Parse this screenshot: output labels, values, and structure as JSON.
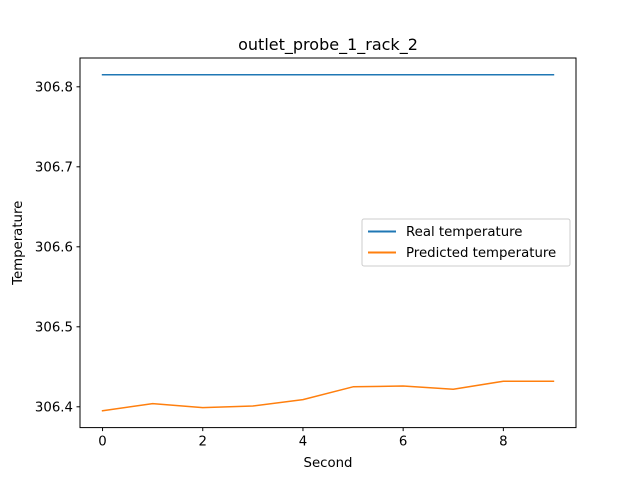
{
  "chart_data": {
    "type": "line",
    "title": "outlet_probe_1_rack_2",
    "xlabel": "Second",
    "ylabel": "Temperature",
    "xlim": [
      -0.45,
      9.45
    ],
    "ylim": [
      306.374,
      306.836
    ],
    "xticks": [
      0,
      2,
      4,
      6,
      8
    ],
    "yticks": [
      306.4,
      306.5,
      306.6,
      306.7,
      306.8
    ],
    "x": [
      0,
      1,
      2,
      3,
      4,
      5,
      6,
      7,
      8,
      9
    ],
    "series": [
      {
        "name": "Real temperature",
        "color": "#1f77b4",
        "values": [
          306.815,
          306.815,
          306.815,
          306.815,
          306.815,
          306.815,
          306.815,
          306.815,
          306.815,
          306.815
        ]
      },
      {
        "name": "Predicted temperature",
        "color": "#ff7f0e",
        "values": [
          306.395,
          306.404,
          306.399,
          306.401,
          306.409,
          306.425,
          306.426,
          306.422,
          306.432,
          306.432
        ]
      }
    ],
    "grid": false,
    "legend_position": "center-right"
  }
}
